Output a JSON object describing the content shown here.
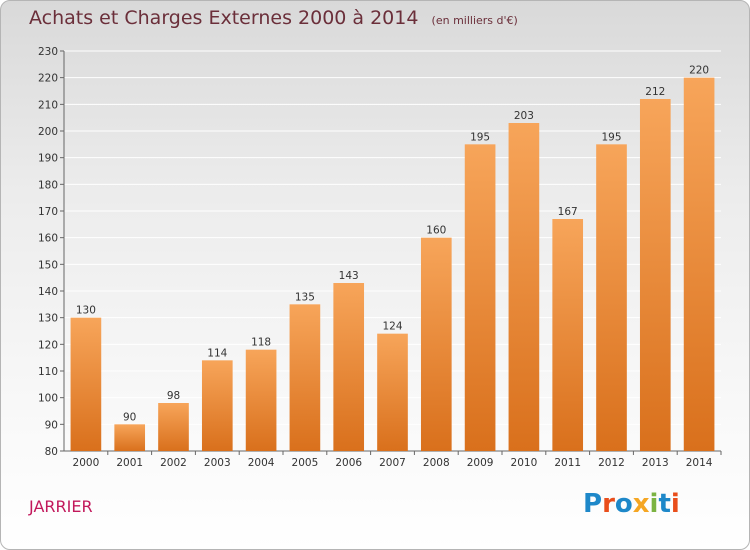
{
  "header": {
    "title": "Achats et Charges Externes 2000 à 2014",
    "subtitle": "(en milliers d'€)"
  },
  "footer": {
    "commune": "JARRIER",
    "logo_text": "Proxiti",
    "logo_letters": [
      {
        "ch": "P",
        "color": "#1e88c9"
      },
      {
        "ch": "r",
        "color": "#e94e1b"
      },
      {
        "ch": "o",
        "color": "#1e88c9"
      },
      {
        "ch": "x",
        "color": "#f5a623"
      },
      {
        "ch": "i",
        "color": "#7cb342"
      },
      {
        "ch": "t",
        "color": "#1e88c9"
      },
      {
        "ch": "i",
        "color": "#e94e1b"
      }
    ]
  },
  "colors": {
    "bar_top": "#f7a55a",
    "bar_bottom": "#d9701c",
    "grid": "#ffffff",
    "title": "#6b2f3a",
    "commune": "#c2185b"
  },
  "chart_data": {
    "type": "bar",
    "categories": [
      "2000",
      "2001",
      "2002",
      "2003",
      "2004",
      "2005",
      "2006",
      "2007",
      "2008",
      "2009",
      "2010",
      "2011",
      "2012",
      "2013",
      "2014"
    ],
    "values": [
      130,
      90,
      98,
      114,
      118,
      135,
      143,
      124,
      160,
      195,
      203,
      167,
      195,
      212,
      220
    ],
    "ylim": [
      80,
      230
    ],
    "yticks": [
      80,
      90,
      100,
      110,
      120,
      130,
      140,
      150,
      160,
      170,
      180,
      190,
      200,
      210,
      220,
      230
    ],
    "grid": true,
    "title": "Achats et Charges Externes 2000 à 2014",
    "xlabel": "",
    "ylabel": ""
  }
}
